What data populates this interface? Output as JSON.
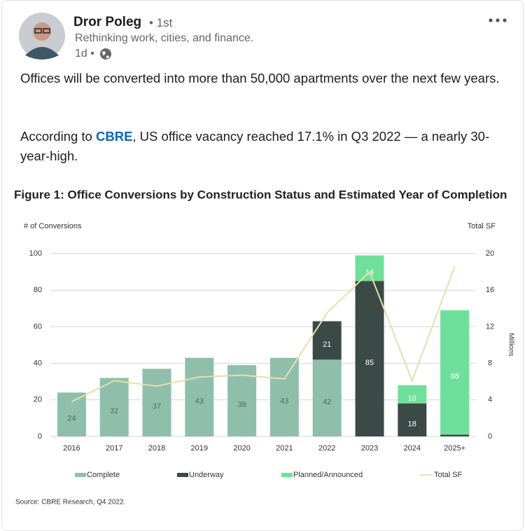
{
  "post": {
    "author": "Dror Poleg",
    "connection": "• 1st",
    "headline": "Rethinking work, cities, and finance.",
    "time": "1d •",
    "paragraphs": [
      [
        "Offices will be converted into more than 50,000 apartments over the next few years."
      ],
      [
        "According to ",
        "CBRE",
        ", US office vacancy reached 17.1% in Q3 2022 — a nearly 30-year-high."
      ]
    ]
  },
  "chart_data": {
    "type": "bar",
    "stacked": true,
    "title": "Figure 1: Office Conversions by Construction Status and Estimated Year of Completion",
    "ylabel": "# of Conversions",
    "y2label": "Total SF",
    "y2unit": "Millions",
    "source": "Source: CBRE Research, Q4 2022.",
    "categories": [
      "2016",
      "2017",
      "2018",
      "2019",
      "2020",
      "2021",
      "2022",
      "2023",
      "2024",
      "2025+"
    ],
    "series": [
      {
        "name": "Complete",
        "color": "#8fbfab",
        "values": [
          24,
          32,
          37,
          43,
          39,
          43,
          42,
          null,
          null,
          null
        ]
      },
      {
        "name": "Underway",
        "color": "#3b4947",
        "values": [
          null,
          null,
          null,
          null,
          null,
          null,
          21,
          85,
          18,
          1
        ]
      },
      {
        "name": "Planned/Announced",
        "color": "#6fe09b",
        "values": [
          null,
          null,
          null,
          null,
          null,
          null,
          null,
          14,
          10,
          68
        ]
      },
      {
        "name": "Total SF",
        "color": "#e6dfae",
        "type": "line",
        "axis": "y2",
        "values": [
          3.8,
          6.1,
          5.5,
          6.5,
          6.7,
          6.3,
          13.5,
          18,
          6.1,
          18.6
        ]
      }
    ],
    "ylim": [
      0,
      100
    ],
    "yticks": [
      0,
      20,
      40,
      60,
      80,
      100
    ],
    "y2lim": [
      0,
      20
    ],
    "y2ticks": [
      0,
      4,
      8,
      12,
      16,
      20
    ],
    "grid": true
  }
}
